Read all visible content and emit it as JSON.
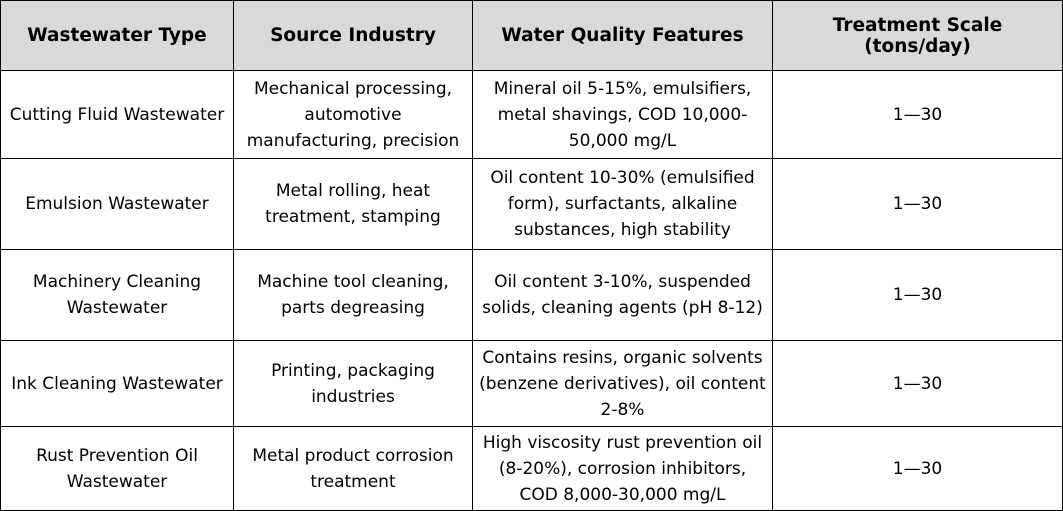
{
  "table": {
    "headers": [
      "Wastewater Type",
      "Source Industry",
      "Water Quality Features",
      "Treatment Scale (tons/day)"
    ],
    "rows": [
      {
        "type": "Cutting Fluid Wastewater",
        "source": "Mechanical processing, automotive manufacturing, precision",
        "features": "Mineral oil 5-15%, emulsifiers, metal shavings, COD 10,000-50,000 mg/L",
        "scale": "1—30"
      },
      {
        "type": "Emulsion Wastewater",
        "source": "Metal rolling, heat treatment, stamping",
        "features": "Oil content 10-30% (emulsified form), surfactants, alkaline substances, high stability",
        "scale": "1—30"
      },
      {
        "type": "Machinery Cleaning Wastewater",
        "source": "Machine tool cleaning, parts degreasing",
        "features": "Oil content 3-10%, suspended solids, cleaning agents (pH 8-12)",
        "scale": "1—30"
      },
      {
        "type": "Ink Cleaning Wastewater",
        "source": "Printing, packaging industries",
        "features": "Contains resins, organic solvents (benzene derivatives), oil content 2-8%",
        "scale": "1—30"
      },
      {
        "type": "Rust Prevention Oil Wastewater",
        "source": "Metal product corrosion treatment",
        "features": "High viscosity rust prevention oil (8-20%), corrosion inhibitors, COD 8,000-30,000 mg/L",
        "scale": "1—30"
      }
    ]
  }
}
